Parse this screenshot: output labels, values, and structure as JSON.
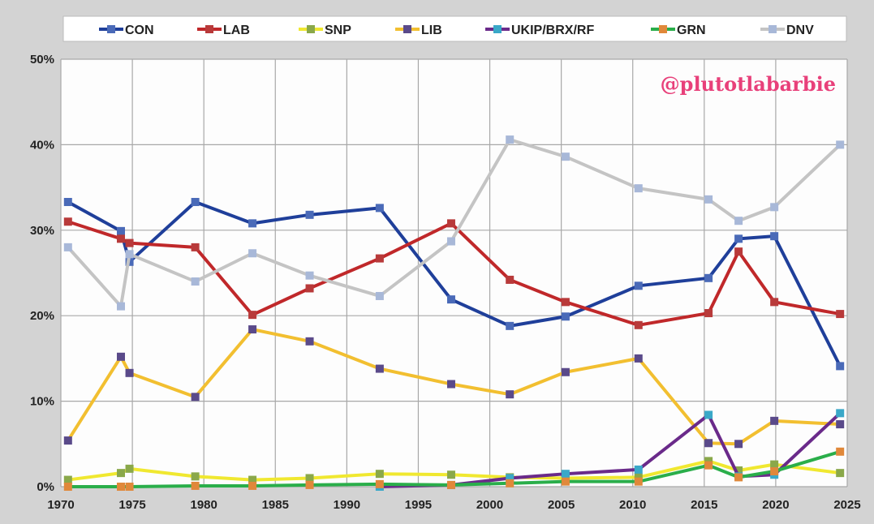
{
  "chart_data": {
    "type": "line",
    "title": "",
    "xlabel": "",
    "ylabel": "",
    "xlim": [
      1970,
      2025
    ],
    "ylim": [
      0,
      50
    ],
    "x_ticks": [
      "1970",
      "1975",
      "1980",
      "1985",
      "1990",
      "1995",
      "2000",
      "2005",
      "2010",
      "2015",
      "2020",
      "2025"
    ],
    "y_ticks": [
      "0%",
      "10%",
      "20%",
      "30%",
      "40%",
      "50%"
    ],
    "grid": true,
    "legend_position": "top",
    "watermark": "@plutotlabarbie",
    "x": [
      1970.5,
      1974.2,
      1974.8,
      1979.4,
      1983.4,
      1987.4,
      1992.3,
      1997.3,
      2001.4,
      2005.3,
      2010.4,
      2015.3,
      2017.4,
      2019.9,
      2024.5
    ],
    "series": [
      {
        "name": "CON",
        "line_color": "#1f3f9a",
        "marker_color": "#4a6ab8",
        "values": [
          33.3,
          29.9,
          26.3,
          33.3,
          30.8,
          31.8,
          32.6,
          21.9,
          18.8,
          19.9,
          23.5,
          24.4,
          29.0,
          29.3,
          14.1
        ]
      },
      {
        "name": "LAB",
        "line_color": "#c0282a",
        "marker_color": "#b83a3a",
        "values": [
          31.0,
          29.0,
          28.5,
          28.0,
          20.1,
          23.2,
          26.7,
          30.8,
          24.2,
          21.6,
          18.9,
          20.3,
          27.5,
          21.6,
          20.2
        ]
      },
      {
        "name": "SNP",
        "line_color": "#f0e830",
        "marker_color": "#8aa84a",
        "values": [
          0.8,
          1.6,
          2.1,
          1.2,
          0.8,
          1.0,
          1.5,
          1.4,
          1.1,
          1.0,
          1.1,
          3.0,
          1.9,
          2.6,
          1.6
        ]
      },
      {
        "name": "LIB",
        "line_color": "#f2bf30",
        "marker_color": "#5a4a8a",
        "values": [
          5.4,
          15.2,
          13.3,
          10.5,
          18.4,
          17.0,
          13.8,
          12.0,
          10.8,
          13.4,
          15.0,
          5.1,
          5.0,
          7.7,
          7.3
        ]
      },
      {
        "name": "UKIP/BRX/RF",
        "line_color": "#6a2a8a",
        "marker_color": "#3aa8c8",
        "values": [
          null,
          null,
          null,
          null,
          null,
          null,
          0.0,
          0.2,
          1.0,
          1.5,
          2.0,
          8.4,
          1.2,
          1.4,
          8.6
        ]
      },
      {
        "name": "GRN",
        "line_color": "#2aae4a",
        "marker_color": "#e0883a",
        "values": [
          0.0,
          0.0,
          0.0,
          0.1,
          0.1,
          0.2,
          0.3,
          0.2,
          0.4,
          0.6,
          0.6,
          2.5,
          1.1,
          1.8,
          4.1
        ]
      },
      {
        "name": "DNV",
        "line_color": "#c4c4c4",
        "marker_color": "#a8b8d8",
        "values": [
          28.0,
          21.1,
          27.2,
          24.0,
          27.3,
          24.7,
          22.3,
          28.7,
          40.6,
          38.6,
          34.9,
          33.6,
          31.1,
          32.7,
          40.0
        ]
      }
    ]
  }
}
